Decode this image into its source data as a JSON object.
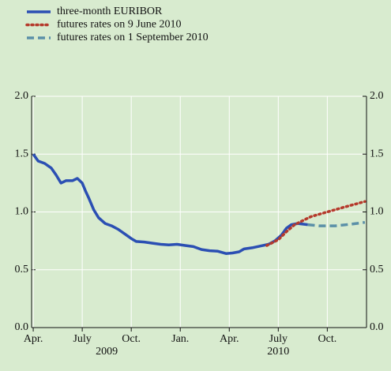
{
  "chart_data": {
    "type": "line",
    "series": [
      {
        "name": "three-month EURIBOR",
        "color": "#2b4fb3",
        "style": "solid",
        "x": [
          0,
          0.3,
          0.7,
          1.1,
          1.4,
          1.7,
          2,
          2.4,
          2.7,
          3,
          3.2,
          3.4,
          3.7,
          4,
          4.4,
          4.8,
          5.2,
          5.6,
          6,
          6.3,
          6.8,
          7.3,
          7.8,
          8.3,
          8.8,
          9.3,
          9.8,
          10.3,
          10.8,
          11.3,
          11.8,
          12.2,
          12.6,
          12.9,
          13.4,
          13.9,
          14.4,
          14.8,
          15.2,
          15.5,
          15.8,
          16.2,
          16.8
        ],
        "values": [
          1.5,
          1.44,
          1.42,
          1.38,
          1.32,
          1.25,
          1.27,
          1.27,
          1.29,
          1.25,
          1.18,
          1.12,
          1.02,
          0.95,
          0.9,
          0.88,
          0.85,
          0.81,
          0.77,
          0.745,
          0.74,
          0.73,
          0.72,
          0.715,
          0.72,
          0.71,
          0.7,
          0.675,
          0.665,
          0.66,
          0.64,
          0.645,
          0.655,
          0.68,
          0.69,
          0.705,
          0.72,
          0.75,
          0.8,
          0.86,
          0.89,
          0.9,
          0.89
        ]
      },
      {
        "name": "futures rates on 9 June 2010",
        "color": "#b53a2c",
        "style": "dotted",
        "x": [
          14.3,
          15,
          15.5,
          16,
          17,
          18,
          19,
          20.3
        ],
        "values": [
          0.71,
          0.76,
          0.83,
          0.89,
          0.96,
          1.0,
          1.04,
          1.09
        ]
      },
      {
        "name": "futures rates on 1 September 2010",
        "color": "#5b90a8",
        "style": "dashed",
        "x": [
          16.8,
          17.5,
          18.5,
          19.5,
          20.3
        ],
        "values": [
          0.89,
          0.88,
          0.88,
          0.895,
          0.91
        ]
      }
    ],
    "xlim": [
      -0.1,
      20.4
    ],
    "xticks": [
      {
        "value": 0,
        "label": "Apr."
      },
      {
        "value": 3,
        "label": "July"
      },
      {
        "value": 6,
        "label": "Oct."
      },
      {
        "value": 9,
        "label": "Jan."
      },
      {
        "value": 12,
        "label": "Apr."
      },
      {
        "value": 15,
        "label": "July"
      },
      {
        "value": 18,
        "label": "Oct."
      }
    ],
    "x_group_labels": [
      {
        "value": 4.5,
        "label": "2009"
      },
      {
        "value": 15,
        "label": "2010"
      }
    ],
    "ylim": [
      0,
      2
    ],
    "yticks": [
      {
        "value": 0,
        "label": "0.0"
      },
      {
        "value": 0.5,
        "label": "0.5"
      },
      {
        "value": 1,
        "label": "1.0"
      },
      {
        "value": 1.5,
        "label": "1.5"
      },
      {
        "value": 2,
        "label": "2.0"
      }
    ],
    "grid": true,
    "legend": "top-left"
  }
}
